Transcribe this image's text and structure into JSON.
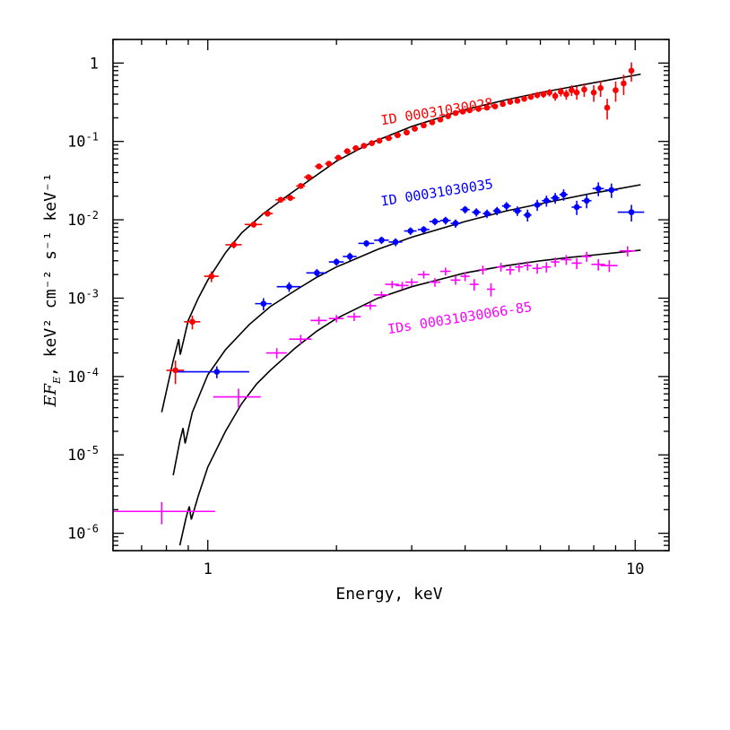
{
  "chart_data": {
    "type": "scatter",
    "xlabel": "Energy, keV",
    "ylabel": {
      "prefix": "EF",
      "sub": "E",
      "units": ", keV² cm⁻² s⁻¹ keV⁻¹"
    },
    "x_scale": "log",
    "y_scale": "log",
    "xlim": [
      0.6,
      12
    ],
    "ylim": [
      6e-07,
      2
    ],
    "x_ticks": [
      {
        "value": 1,
        "label": "1"
      },
      {
        "value": 10,
        "label": "10"
      }
    ],
    "y_ticks": [
      {
        "value": 1,
        "base": "1",
        "exp": ""
      },
      {
        "value": 0.1,
        "base": "10",
        "exp": "-1"
      },
      {
        "value": 0.01,
        "base": "10",
        "exp": "-2"
      },
      {
        "value": 0.001,
        "base": "10",
        "exp": "-3"
      },
      {
        "value": 0.0001,
        "base": "10",
        "exp": "-4"
      },
      {
        "value": 1e-05,
        "base": "10",
        "exp": "-5"
      },
      {
        "value": 1e-06,
        "base": "10",
        "exp": "-6"
      }
    ],
    "series": [
      {
        "annotation": "ID 00031030028",
        "color": "#ff0000",
        "marker": "dot",
        "points": [
          [
            0.84,
            0.00012,
            0.04,
            4e-05
          ],
          [
            0.92,
            0.0005,
            0.04,
            0.0001
          ],
          [
            1.02,
            0.0019,
            0.04,
            0.0003
          ],
          [
            1.15,
            0.0048,
            0.05,
            0.0005
          ],
          [
            1.28,
            0.0087,
            0.06,
            0.0008
          ],
          [
            1.38,
            0.012,
            0.04,
            0.001
          ],
          [
            1.48,
            0.018,
            0.04,
            0.0015
          ],
          [
            1.56,
            0.019,
            0.04,
            0.0015
          ],
          [
            1.65,
            0.027,
            0.04,
            0.002
          ],
          [
            1.72,
            0.035,
            0.04,
            0.003
          ],
          [
            1.82,
            0.048,
            0.04,
            0.003
          ],
          [
            1.92,
            0.052,
            0.04,
            0.003
          ],
          [
            2.02,
            0.062,
            0.04,
            0.004
          ],
          [
            2.12,
            0.075,
            0.04,
            0.005
          ],
          [
            2.22,
            0.082,
            0.04,
            0.005
          ],
          [
            2.32,
            0.088,
            0.04,
            0.006
          ],
          [
            2.42,
            0.095,
            0.04,
            0.006
          ],
          [
            2.52,
            0.102,
            0.04,
            0.007
          ],
          [
            2.65,
            0.11,
            0.05,
            0.008
          ],
          [
            2.78,
            0.12,
            0.05,
            0.008
          ],
          [
            2.92,
            0.13,
            0.05,
            0.009
          ],
          [
            3.05,
            0.145,
            0.05,
            0.01
          ],
          [
            3.2,
            0.16,
            0.05,
            0.011
          ],
          [
            3.35,
            0.175,
            0.05,
            0.012
          ],
          [
            3.5,
            0.19,
            0.05,
            0.013
          ],
          [
            3.65,
            0.21,
            0.05,
            0.015
          ],
          [
            3.8,
            0.23,
            0.05,
            0.016
          ],
          [
            3.95,
            0.24,
            0.05,
            0.017
          ],
          [
            4.1,
            0.25,
            0.05,
            0.018
          ],
          [
            4.3,
            0.26,
            0.06,
            0.019
          ],
          [
            4.5,
            0.27,
            0.06,
            0.02
          ],
          [
            4.7,
            0.28,
            0.06,
            0.021
          ],
          [
            4.9,
            0.3,
            0.06,
            0.023
          ],
          [
            5.1,
            0.32,
            0.06,
            0.025
          ],
          [
            5.3,
            0.33,
            0.07,
            0.026
          ],
          [
            5.5,
            0.35,
            0.07,
            0.028
          ],
          [
            5.7,
            0.37,
            0.07,
            0.03
          ],
          [
            5.9,
            0.39,
            0.07,
            0.035
          ],
          [
            6.1,
            0.4,
            0.08,
            0.04
          ],
          [
            6.3,
            0.42,
            0.08,
            0.045
          ],
          [
            6.5,
            0.38,
            0.08,
            0.05
          ],
          [
            6.7,
            0.43,
            0.08,
            0.055
          ],
          [
            6.9,
            0.4,
            0.08,
            0.06
          ],
          [
            7.1,
            0.45,
            0.08,
            0.07
          ],
          [
            7.3,
            0.42,
            0.08,
            0.08
          ],
          [
            7.6,
            0.46,
            0.1,
            0.09
          ],
          [
            8.0,
            0.42,
            0.1,
            0.1
          ],
          [
            8.3,
            0.48,
            0.1,
            0.11
          ],
          [
            8.6,
            0.27,
            0.1,
            0.08
          ],
          [
            9.0,
            0.45,
            0.1,
            0.13
          ],
          [
            9.4,
            0.55,
            0.1,
            0.16
          ],
          [
            9.8,
            0.8,
            0.1,
            0.22
          ]
        ],
        "model": [
          [
            0.78,
            3.5e-05
          ],
          [
            0.83,
            0.00016
          ],
          [
            0.855,
            0.0003
          ],
          [
            0.862,
            0.00019
          ],
          [
            0.9,
            0.00052
          ],
          [
            0.95,
            0.001
          ],
          [
            1.0,
            0.0017
          ],
          [
            1.1,
            0.0038
          ],
          [
            1.2,
            0.0068
          ],
          [
            1.35,
            0.012
          ],
          [
            1.5,
            0.0185
          ],
          [
            1.7,
            0.03
          ],
          [
            2.0,
            0.056
          ],
          [
            2.4,
            0.095
          ],
          [
            3.0,
            0.155
          ],
          [
            4.0,
            0.255
          ],
          [
            5.0,
            0.34
          ],
          [
            6.0,
            0.42
          ],
          [
            7.0,
            0.49
          ],
          [
            8.0,
            0.56
          ],
          [
            9.0,
            0.63
          ],
          [
            10.3,
            0.72
          ]
        ]
      },
      {
        "annotation": "ID 00031030035",
        "color": "#0000ff",
        "marker": "dot",
        "points": [
          [
            1.05,
            0.000115,
            0.2,
            2e-05
          ],
          [
            1.35,
            0.00085,
            0.06,
            0.00015
          ],
          [
            1.55,
            0.0014,
            0.1,
            0.0002
          ],
          [
            1.8,
            0.0021,
            0.1,
            0.00025
          ],
          [
            2.0,
            0.0029,
            0.08,
            0.0003
          ],
          [
            2.15,
            0.0034,
            0.08,
            0.0004
          ],
          [
            2.35,
            0.005,
            0.1,
            0.0005
          ],
          [
            2.55,
            0.0055,
            0.1,
            0.0006
          ],
          [
            2.75,
            0.0052,
            0.1,
            0.0006
          ],
          [
            2.98,
            0.0072,
            0.1,
            0.0008
          ],
          [
            3.2,
            0.0075,
            0.1,
            0.0008
          ],
          [
            3.4,
            0.0095,
            0.1,
            0.001
          ],
          [
            3.6,
            0.0098,
            0.1,
            0.0011
          ],
          [
            3.8,
            0.009,
            0.1,
            0.0011
          ],
          [
            4.0,
            0.0135,
            0.1,
            0.0015
          ],
          [
            4.25,
            0.0125,
            0.1,
            0.0015
          ],
          [
            4.5,
            0.012,
            0.1,
            0.0015
          ],
          [
            4.75,
            0.013,
            0.1,
            0.0016
          ],
          [
            5.0,
            0.015,
            0.12,
            0.0018
          ],
          [
            5.3,
            0.013,
            0.12,
            0.0018
          ],
          [
            5.6,
            0.0115,
            0.12,
            0.002
          ],
          [
            5.9,
            0.0155,
            0.15,
            0.0025
          ],
          [
            6.2,
            0.0175,
            0.15,
            0.0028
          ],
          [
            6.5,
            0.019,
            0.15,
            0.003
          ],
          [
            6.8,
            0.021,
            0.15,
            0.0035
          ],
          [
            7.3,
            0.0145,
            0.2,
            0.003
          ],
          [
            7.7,
            0.0175,
            0.2,
            0.0035
          ],
          [
            8.2,
            0.025,
            0.25,
            0.005
          ],
          [
            8.8,
            0.024,
            0.3,
            0.005
          ],
          [
            9.8,
            0.0125,
            0.7,
            0.003
          ]
        ],
        "model": [
          [
            0.83,
            5.5e-06
          ],
          [
            0.86,
            1.5e-05
          ],
          [
            0.875,
            2.2e-05
          ],
          [
            0.885,
            1.4e-05
          ],
          [
            0.92,
            3.5e-05
          ],
          [
            1.0,
            0.000105
          ],
          [
            1.1,
            0.00022
          ],
          [
            1.25,
            0.00046
          ],
          [
            1.4,
            0.00078
          ],
          [
            1.6,
            0.00125
          ],
          [
            1.8,
            0.00185
          ],
          [
            2.0,
            0.0025
          ],
          [
            2.5,
            0.0042
          ],
          [
            3.0,
            0.006
          ],
          [
            4.0,
            0.0095
          ],
          [
            5.0,
            0.013
          ],
          [
            6.0,
            0.016
          ],
          [
            7.0,
            0.019
          ],
          [
            8.0,
            0.022
          ],
          [
            9.0,
            0.0245
          ],
          [
            10.3,
            0.028
          ]
        ]
      },
      {
        "annotation": "IDs 00031030066-85",
        "color": "#ff00ff",
        "marker": "cross",
        "points": [
          [
            0.78,
            1.9e-06,
            0.26,
            6e-07
          ],
          [
            1.18,
            5.5e-05,
            0.15,
            1.5e-05
          ],
          [
            1.45,
            0.0002,
            0.08,
            3e-05
          ],
          [
            1.65,
            0.0003,
            0.1,
            4e-05
          ],
          [
            1.82,
            0.00052,
            0.08,
            6e-05
          ],
          [
            2.0,
            0.00055,
            0.08,
            6e-05
          ],
          [
            2.2,
            0.00058,
            0.08,
            7e-05
          ],
          [
            2.4,
            0.0008,
            0.08,
            9e-05
          ],
          [
            2.55,
            0.0011,
            0.1,
            0.00012
          ],
          [
            2.7,
            0.0015,
            0.1,
            0.00016
          ],
          [
            2.85,
            0.00145,
            0.1,
            0.00016
          ],
          [
            3.0,
            0.0016,
            0.1,
            0.00018
          ],
          [
            3.2,
            0.002,
            0.1,
            0.00022
          ],
          [
            3.4,
            0.0016,
            0.1,
            0.0002
          ],
          [
            3.6,
            0.0022,
            0.1,
            0.00025
          ],
          [
            3.8,
            0.0017,
            0.1,
            0.00022
          ],
          [
            4.0,
            0.0019,
            0.1,
            0.00025
          ],
          [
            4.2,
            0.0015,
            0.1,
            0.00025
          ],
          [
            4.4,
            0.0023,
            0.1,
            0.0003
          ],
          [
            4.6,
            0.0013,
            0.1,
            0.00025
          ],
          [
            4.85,
            0.0025,
            0.12,
            0.00032
          ],
          [
            5.1,
            0.0023,
            0.12,
            0.00032
          ],
          [
            5.35,
            0.0025,
            0.12,
            0.00035
          ],
          [
            5.6,
            0.0026,
            0.12,
            0.00035
          ],
          [
            5.9,
            0.0024,
            0.15,
            0.00035
          ],
          [
            6.2,
            0.0025,
            0.15,
            0.00038
          ],
          [
            6.5,
            0.0029,
            0.15,
            0.0004
          ],
          [
            6.9,
            0.0031,
            0.2,
            0.00045
          ],
          [
            7.3,
            0.0028,
            0.2,
            0.00045
          ],
          [
            7.7,
            0.0034,
            0.2,
            0.0005
          ],
          [
            8.2,
            0.0027,
            0.3,
            0.00045
          ],
          [
            8.7,
            0.0026,
            0.4,
            0.00045
          ],
          [
            9.6,
            0.004,
            0.4,
            0.0006
          ]
        ],
        "model": [
          [
            0.86,
            7e-07
          ],
          [
            0.89,
            1.6e-06
          ],
          [
            0.905,
            2.2e-06
          ],
          [
            0.915,
            1.5e-06
          ],
          [
            0.95,
            3e-06
          ],
          [
            1.0,
            7e-06
          ],
          [
            1.1,
            2e-05
          ],
          [
            1.2,
            4.5e-05
          ],
          [
            1.3,
            8e-05
          ],
          [
            1.4,
            0.00012
          ],
          [
            1.6,
            0.00023
          ],
          [
            1.8,
            0.00038
          ],
          [
            2.0,
            0.00055
          ],
          [
            2.5,
            0.001
          ],
          [
            3.0,
            0.0014
          ],
          [
            4.0,
            0.0021
          ],
          [
            5.0,
            0.0026
          ],
          [
            6.0,
            0.003
          ],
          [
            7.0,
            0.0033
          ],
          [
            8.0,
            0.00355
          ],
          [
            9.0,
            0.0038
          ],
          [
            10.3,
            0.0041
          ]
        ]
      }
    ]
  }
}
